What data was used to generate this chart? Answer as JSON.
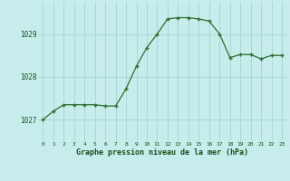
{
  "hours": [
    0,
    1,
    2,
    3,
    4,
    5,
    6,
    7,
    8,
    9,
    10,
    11,
    12,
    13,
    14,
    15,
    16,
    17,
    18,
    19,
    20,
    21,
    22,
    23
  ],
  "pressure": [
    1027.0,
    1027.2,
    1027.35,
    1027.35,
    1027.35,
    1027.35,
    1027.32,
    1027.32,
    1027.72,
    1028.25,
    1028.68,
    1029.0,
    1029.35,
    1029.38,
    1029.38,
    1029.35,
    1029.3,
    1029.0,
    1028.45,
    1028.52,
    1028.52,
    1028.42,
    1028.5,
    1028.5
  ],
  "line_color": "#2d6e2d",
  "marker_color": "#2d6e2d",
  "bg_color": "#c6ecec",
  "grid_color": "#a0d0d0",
  "xlabel": "Graphe pression niveau de la mer (hPa)",
  "xlabel_color": "#1a4e1a",
  "tick_color": "#1a4e1a",
  "ylim": [
    1026.5,
    1029.75
  ],
  "yticks": [
    1027,
    1028,
    1029
  ],
  "xlim": [
    -0.5,
    23.5
  ],
  "figsize": [
    3.2,
    2.0
  ],
  "dpi": 100
}
